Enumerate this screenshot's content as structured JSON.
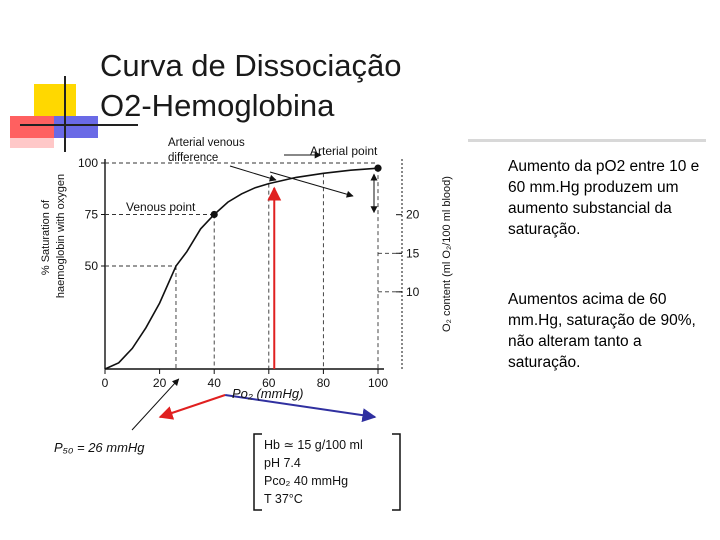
{
  "title": {
    "line1": "Curva de Dissociação",
    "line2": "O2-Hemoglobina"
  },
  "notes": [
    "Aumento da pO2 entre 10 e 60 mm.Hg produzem um aumento substancial da saturação.",
    "Aumentos acima de 60 mm.Hg, saturação de 90%, não alteram tanto a saturação."
  ],
  "colors": {
    "accent_red": "#e02020",
    "accent_blue": "#3030a0",
    "curve": "#111111"
  },
  "chart_data": {
    "type": "line",
    "title": "",
    "xlabel": "Po₂ (mmHg)",
    "ylabel": "% Saturation of haemoglobin with oxygen",
    "y2label": "O₂ content (ml O₂/100 ml blood)",
    "xlim": [
      0,
      100
    ],
    "ylim": [
      0,
      100
    ],
    "y2lim": [
      0,
      26.7
    ],
    "x_ticks": [
      "0",
      "20",
      "40",
      "60",
      "80",
      "100"
    ],
    "x_tick_values": [
      0,
      20,
      40,
      60,
      80,
      100
    ],
    "y_ticks": [
      "50",
      "75",
      "100"
    ],
    "y_tick_values": [
      50,
      75,
      100
    ],
    "y2_ticks": [
      "10",
      "15",
      "20"
    ],
    "y2_tick_values": [
      10,
      15,
      20
    ],
    "grid": false,
    "series": [
      {
        "x": [
          0,
          5,
          10,
          15,
          20,
          26,
          30,
          35,
          40,
          45,
          50,
          55,
          60,
          70,
          80,
          90,
          100
        ],
        "values": [
          0,
          3,
          10,
          20,
          32,
          50,
          57,
          68,
          75,
          81,
          85,
          88,
          90,
          93,
          95,
          96.5,
          97.5
        ]
      }
    ],
    "points": [
      {
        "name": "arterial",
        "label": "Arterial point",
        "x": 100,
        "y": 97.5
      },
      {
        "name": "venous",
        "label": "Venous point",
        "x": 40,
        "y": 75
      }
    ],
    "annotations": {
      "difference": "Arterial venous difference",
      "p50": "P₅₀ = 26 mmHg"
    },
    "conditions": [
      "Hb ≃ 15 g/100 ml",
      "pH 7.4",
      "Pco₂ 40 mmHg",
      "T 37°C"
    ]
  }
}
